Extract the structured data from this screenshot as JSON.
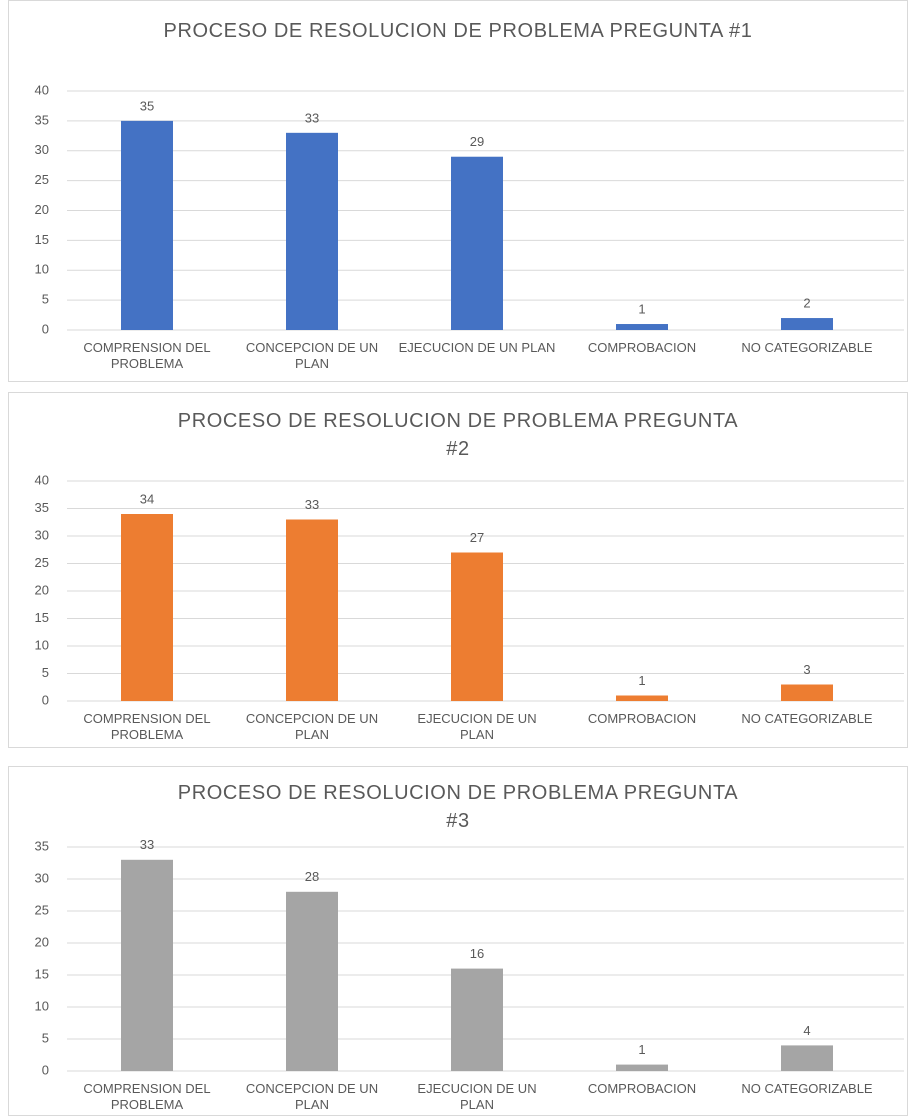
{
  "chart_data": [
    {
      "type": "bar",
      "title": "PROCESO DE RESOLUCION DE PROBLEMA PREGUNTA #1",
      "categories": [
        "COMPRENSION DEL PROBLEMA",
        "CONCEPCION DE UN PLAN",
        "EJECUCION DE UN PLAN",
        "COMPROBACION",
        "NO CATEGORIZABLE"
      ],
      "values": [
        35,
        33,
        29,
        1,
        2
      ],
      "color": "#4472c4",
      "ylim": [
        0,
        40
      ],
      "yticks": [
        0,
        5,
        10,
        15,
        20,
        25,
        30,
        35,
        40
      ],
      "grid": true
    },
    {
      "type": "bar",
      "title": "PROCESO DE RESOLUCION DE PROBLEMA PREGUNTA #2",
      "categories": [
        "COMPRENSION DEL PROBLEMA",
        "CONCEPCION DE UN PLAN",
        "EJECUCION DE UN PLAN",
        "COMPROBACION",
        "NO CATEGORIZABLE"
      ],
      "values": [
        34,
        33,
        27,
        1,
        3
      ],
      "color": "#ed7d31",
      "ylim": [
        0,
        40
      ],
      "yticks": [
        0,
        5,
        10,
        15,
        20,
        25,
        30,
        35,
        40
      ],
      "grid": true
    },
    {
      "type": "bar",
      "title": "PROCESO DE RESOLUCION DE PROBLEMA PREGUNTA #3",
      "categories": [
        "COMPRENSION DEL PROBLEMA",
        "CONCEPCION DE UN PLAN",
        "EJECUCION DE UN PLAN",
        "COMPROBACION",
        "NO CATEGORIZABLE"
      ],
      "values": [
        33,
        28,
        16,
        1,
        4
      ],
      "color": "#a5a5a5",
      "ylim": [
        0,
        35
      ],
      "yticks": [
        0,
        5,
        10,
        15,
        20,
        25,
        30,
        35
      ],
      "grid": true
    }
  ]
}
